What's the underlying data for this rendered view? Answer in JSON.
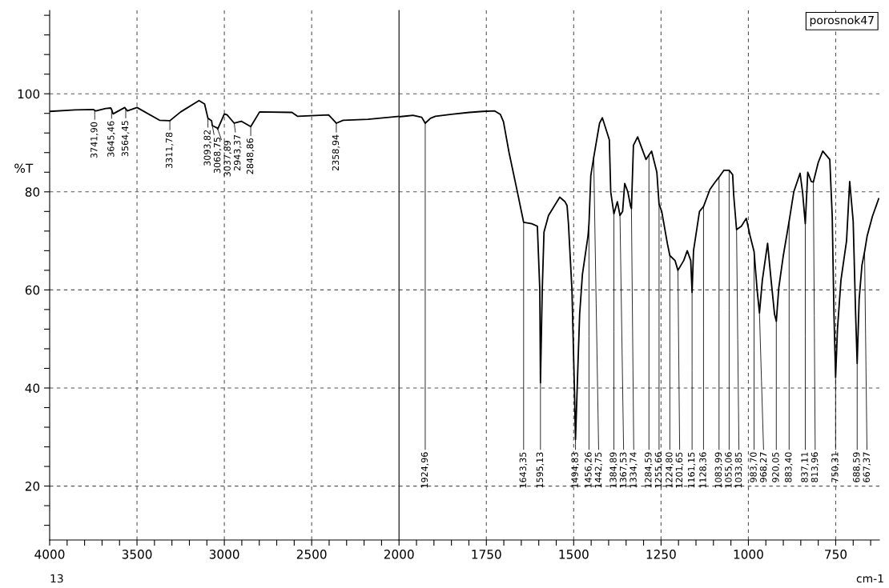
{
  "chart_data": [
    {
      "type": "line",
      "ylabel": "%T",
      "color": "#000000",
      "grid": true,
      "x": [
        4000,
        3855,
        3750,
        3741.9,
        3735,
        3680,
        3650,
        3645.46,
        3637,
        3570,
        3564.45,
        3555,
        3500,
        3371,
        3311.78,
        3250,
        3145,
        3113,
        3093.82,
        3073,
        3068.75,
        3040,
        3037.89,
        3000,
        2984,
        2943.37,
        2903,
        2848.86,
        2798,
        2613,
        2580,
        2403,
        2358.94,
        2320,
        2177,
        2000
      ],
      "values": [
        96.4,
        96.7,
        96.8,
        96.6,
        96.5,
        97.0,
        97.1,
        96.8,
        95.9,
        97.2,
        96.9,
        96.5,
        97.2,
        94.6,
        94.5,
        96.3,
        98.6,
        97.9,
        95.0,
        94.5,
        93.5,
        93.0,
        92.8,
        95.9,
        95.7,
        94.0,
        94.4,
        93.3,
        96.3,
        96.2,
        95.4,
        95.7,
        94.0,
        94.6,
        94.8,
        95.4
      ],
      "xlim": [
        4000,
        2000
      ],
      "xticks": [
        4000,
        {
          "value": 3900,
          "label": null
        },
        {
          "value": 3800,
          "label": null
        },
        {
          "value": 3700,
          "label": null
        },
        {
          "value": 3600,
          "label": null
        },
        3500,
        {
          "value": 3400,
          "label": null
        },
        {
          "value": 3300,
          "label": null
        },
        {
          "value": 3200,
          "label": null
        },
        {
          "value": 3100,
          "label": null
        },
        3000,
        {
          "value": 2900,
          "label": null
        },
        {
          "value": 2800,
          "label": null
        },
        {
          "value": 2700,
          "label": null
        },
        {
          "value": 2600,
          "label": null
        },
        2500,
        {
          "value": 2400,
          "label": null
        },
        {
          "value": 2300,
          "label": null
        },
        {
          "value": 2200,
          "label": null
        },
        {
          "value": 2100,
          "label": null
        },
        2000
      ],
      "ylim": [
        9,
        117
      ],
      "yticks": [
        {
          "value": 12,
          "label": null
        },
        {
          "value": 16,
          "label": null
        },
        20,
        {
          "value": 24,
          "label": null
        },
        {
          "value": 28,
          "label": null
        },
        {
          "value": 32,
          "label": null
        },
        {
          "value": 36,
          "label": null
        },
        40,
        {
          "value": 44,
          "label": null
        },
        {
          "value": 48,
          "label": null
        },
        {
          "value": 52,
          "label": null
        },
        {
          "value": 56,
          "label": null
        },
        60,
        {
          "value": 64,
          "label": null
        },
        {
          "value": 68,
          "label": null
        },
        {
          "value": 72,
          "label": null
        },
        {
          "value": 76,
          "label": null
        },
        80,
        {
          "value": 84,
          "label": null
        },
        {
          "value": 88,
          "label": null
        },
        {
          "value": 92,
          "label": null
        },
        {
          "value": 96,
          "label": null
        },
        100,
        {
          "value": 104,
          "label": null
        },
        {
          "value": 108,
          "label": null
        },
        {
          "value": 112,
          "label": null
        },
        {
          "value": 116,
          "label": null
        }
      ],
      "annotations": [
        {
          "text": "3741,90",
          "x": 3741.9,
          "y": 96.6
        },
        {
          "text": "3645,46",
          "x": 3645.46,
          "y": 96.8
        },
        {
          "text": "3564,45",
          "x": 3564.45,
          "y": 96.9
        },
        {
          "text": "3311,78",
          "x": 3311.78,
          "y": 94.5
        },
        {
          "text": "3093,82",
          "x": 3093.82,
          "y": 95.0
        },
        {
          "text": "3068,75",
          "x": 3068.75,
          "y": 93.5
        },
        {
          "text": "3037,89",
          "x": 3037.89,
          "y": 92.8
        },
        {
          "text": "2943,37",
          "x": 2943.37,
          "y": 94.0
        },
        {
          "text": "2848,86",
          "x": 2848.86,
          "y": 93.3
        },
        {
          "text": "2358,94",
          "x": 2358.94,
          "y": 94.0
        },
        "13"
      ]
    },
    {
      "type": "line",
      "color": "#000000",
      "grid": true,
      "tick_labels": "x",
      "x": [
        2000,
        1960,
        1935,
        1924.96,
        1910,
        1896,
        1850,
        1799,
        1760,
        1726,
        1710,
        1701,
        1685,
        1661,
        1643.35,
        1620,
        1604,
        1597,
        1595.13,
        1590,
        1585,
        1572,
        1540,
        1525,
        1519,
        1515,
        1505,
        1498,
        1494.83,
        1490,
        1483,
        1475,
        1459,
        1456.26,
        1451,
        1442.75,
        1426,
        1418,
        1398,
        1394,
        1384.89,
        1375,
        1367.53,
        1360,
        1354,
        1345,
        1337,
        1334.74,
        1329,
        1317,
        1293,
        1284.59,
        1277,
        1262,
        1255.66,
        1248,
        1232,
        1224.8,
        1210,
        1201.65,
        1185,
        1175,
        1165,
        1161.15,
        1157,
        1140,
        1128.36,
        1110,
        1095,
        1083.99,
        1070,
        1055.06,
        1045,
        1042,
        1033.85,
        1020,
        1006,
        995,
        983.7,
        975,
        968.27,
        960,
        945,
        935,
        925,
        920.05,
        913,
        900,
        883.4,
        870,
        852,
        845,
        837.11,
        830,
        820,
        813.96,
        800,
        787,
        767,
        760,
        755,
        750.31,
        745,
        735,
        719,
        710,
        700,
        693,
        688.59,
        683,
        675,
        667.37,
        660,
        645,
        627
      ],
      "values": [
        95.3,
        95.6,
        95.2,
        94.0,
        95.0,
        95.4,
        95.8,
        96.2,
        96.4,
        96.5,
        95.8,
        94.3,
        88,
        79.9,
        73.8,
        73.5,
        73.0,
        60,
        41.1,
        60,
        71.8,
        75.2,
        78.9,
        78,
        77.2,
        73.5,
        60,
        40,
        29.5,
        40,
        55,
        63.2,
        71,
        73.5,
        83.3,
        87,
        94,
        95.1,
        90.6,
        80,
        75.5,
        78,
        75.2,
        76,
        81.7,
        80,
        77,
        76.6,
        89.5,
        91.2,
        86.6,
        87.5,
        88.3,
        84,
        77.5,
        76,
        69.5,
        67,
        66,
        64,
        66,
        68,
        66,
        59.5,
        68,
        76,
        77,
        80.5,
        82,
        83,
        84.4,
        84.4,
        83.5,
        79.3,
        72.3,
        73,
        74.6,
        71,
        67.8,
        60,
        55.3,
        62,
        69.5,
        62,
        55,
        53.6,
        60.4,
        67,
        74,
        80,
        83.8,
        80,
        73.5,
        84,
        82.1,
        82,
        86,
        88.3,
        86.6,
        75,
        55,
        42.2,
        52,
        62,
        70,
        82.1,
        74,
        55,
        45,
        58,
        65,
        67.8,
        71,
        75,
        78.6
      ],
      "xlim": [
        2000,
        625
      ],
      "xticks": [
        {
          "value": 1950,
          "label": null
        },
        {
          "value": 1900,
          "label": null
        },
        {
          "value": 1850,
          "label": null
        },
        {
          "value": 1800,
          "label": null
        },
        1750,
        {
          "value": 1700,
          "label": null
        },
        {
          "value": 1650,
          "label": null
        },
        {
          "value": 1600,
          "label": null
        },
        {
          "value": 1550,
          "label": null
        },
        1500,
        {
          "value": 1450,
          "label": null
        },
        {
          "value": 1400,
          "label": null
        },
        {
          "value": 1350,
          "label": null
        },
        {
          "value": 1300,
          "label": null
        },
        1250,
        {
          "value": 1200,
          "label": null
        },
        {
          "value": 1150,
          "label": null
        },
        {
          "value": 1100,
          "label": null
        },
        {
          "value": 1050,
          "label": null
        },
        1000,
        {
          "value": 950,
          "label": null
        },
        {
          "value": 900,
          "label": null
        },
        {
          "value": 850,
          "label": null
        },
        {
          "value": 800,
          "label": null
        },
        750,
        {
          "value": 700,
          "label": null
        },
        {
          "value": 650,
          "label": null
        }
      ],
      "ylim": [
        9,
        117
      ],
      "yticks": [
        20,
        40,
        60,
        80,
        100
      ],
      "annotations": [
        {
          "text": "1924,96",
          "x": 1924.96,
          "y": 94.0
        },
        {
          "text": "1643,35",
          "x": 1643.35,
          "y": 73.8
        },
        {
          "text": "1595,13",
          "x": 1595.13,
          "y": 41.1
        },
        {
          "text": "1494,83",
          "x": 1494.83,
          "y": 29.5
        },
        {
          "text": "1456,26",
          "x": 1456.26,
          "y": 73.5
        },
        {
          "text": "1442,75",
          "x": 1442.75,
          "y": 87
        },
        {
          "text": "1384,89",
          "x": 1384.89,
          "y": 75.5
        },
        {
          "text": "1367,53",
          "x": 1367.53,
          "y": 75.2
        },
        {
          "text": "1334,74",
          "x": 1334.74,
          "y": 76.6
        },
        {
          "text": "1284,59",
          "x": 1284.59,
          "y": 87.5
        },
        {
          "text": "1255,66",
          "x": 1255.66,
          "y": 77.5
        },
        {
          "text": "1224,80",
          "x": 1224.8,
          "y": 67
        },
        {
          "text": "1201,65",
          "x": 1201.65,
          "y": 64
        },
        {
          "text": "1161,15",
          "x": 1161.15,
          "y": 59.5
        },
        {
          "text": "1128,36",
          "x": 1128.36,
          "y": 77
        },
        {
          "text": "1083,99",
          "x": 1083.99,
          "y": 83
        },
        {
          "text": "1055,06",
          "x": 1055.06,
          "y": 84.4
        },
        {
          "text": "1033,85",
          "x": 1033.85,
          "y": 72.3
        },
        {
          "text": "983,70",
          "x": 983.7,
          "y": 67.8
        },
        {
          "text": "968,27",
          "x": 968.27,
          "y": 55.3
        },
        {
          "text": "920,05",
          "x": 920.05,
          "y": 53.6
        },
        {
          "text": "883,40",
          "x": 883.4,
          "y": 74
        },
        {
          "text": "837,11",
          "x": 837.11,
          "y": 73.5
        },
        {
          "text": "813,96",
          "x": 813.96,
          "y": 82
        },
        {
          "text": "750,31",
          "x": 750.31,
          "y": 42.2
        },
        {
          "text": "688,59",
          "x": 688.59,
          "y": 45
        },
        {
          "text": "667,37",
          "x": 667.37,
          "y": 67.8
        },
        "porosnok47",
        "cm-1"
      ]
    }
  ]
}
